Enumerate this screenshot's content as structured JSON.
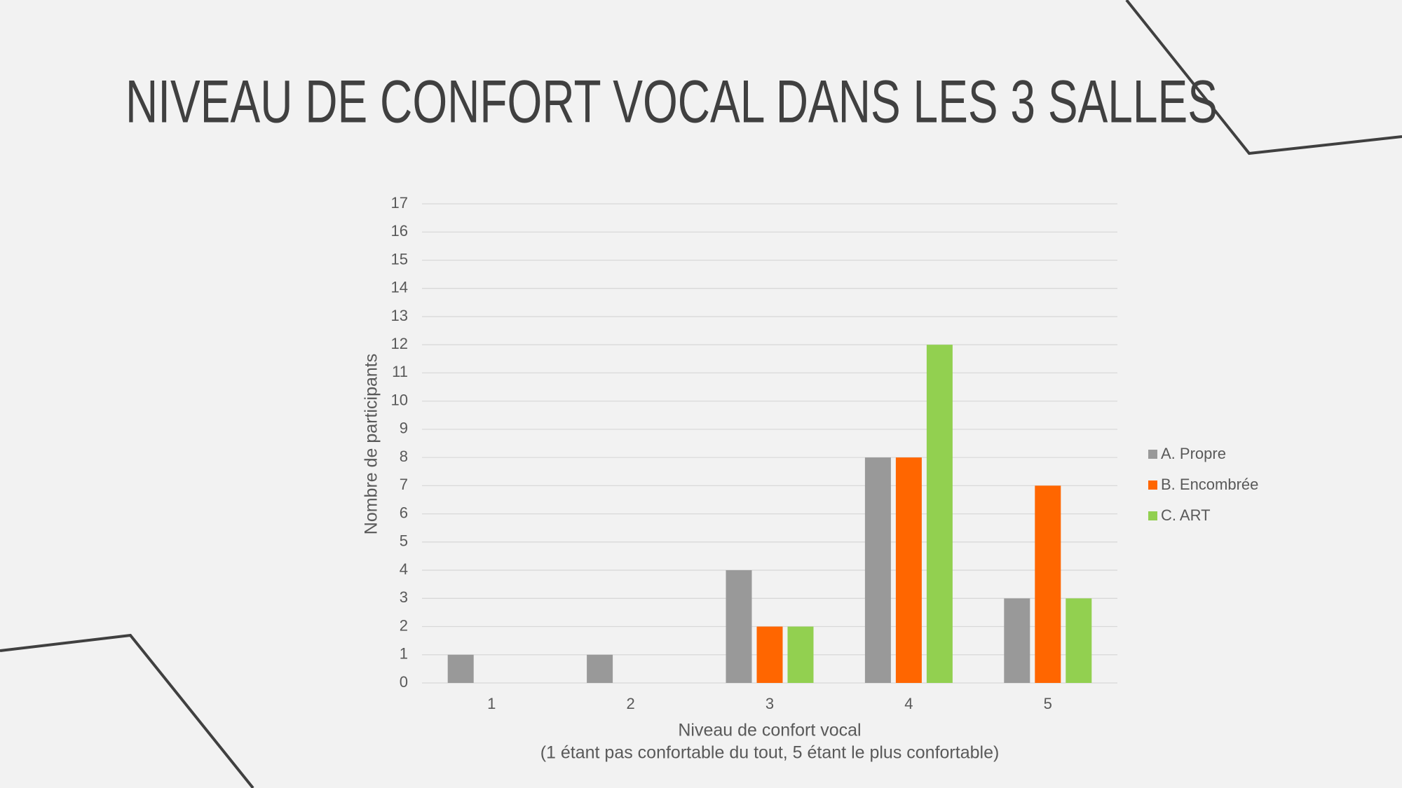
{
  "chart_data": {
    "type": "bar",
    "title": "NIVEAU DE CONFORT VOCAL DANS LES 3 SALLES",
    "categories": [
      "1",
      "2",
      "3",
      "4",
      "5"
    ],
    "series": [
      {
        "name": "A. Propre",
        "color": "#999999",
        "values": [
          1,
          1,
          4,
          8,
          3
        ]
      },
      {
        "name": "B. Encombrée",
        "color": "#ff6600",
        "values": [
          0,
          0,
          2,
          8,
          7
        ]
      },
      {
        "name": "C. ART",
        "color": "#92d050",
        "values": [
          0,
          0,
          2,
          12,
          3
        ]
      }
    ],
    "xlabel": [
      "Niveau de confort vocal",
      "(1 étant pas confortable du tout, 5 étant le plus confortable)"
    ],
    "ylabel": "Nombre de participants",
    "ylim": [
      0,
      17
    ],
    "yticks": [
      0,
      1,
      2,
      3,
      4,
      5,
      6,
      7,
      8,
      9,
      10,
      11,
      12,
      13,
      14,
      15,
      16,
      17
    ],
    "grid": true,
    "legend": "right"
  }
}
